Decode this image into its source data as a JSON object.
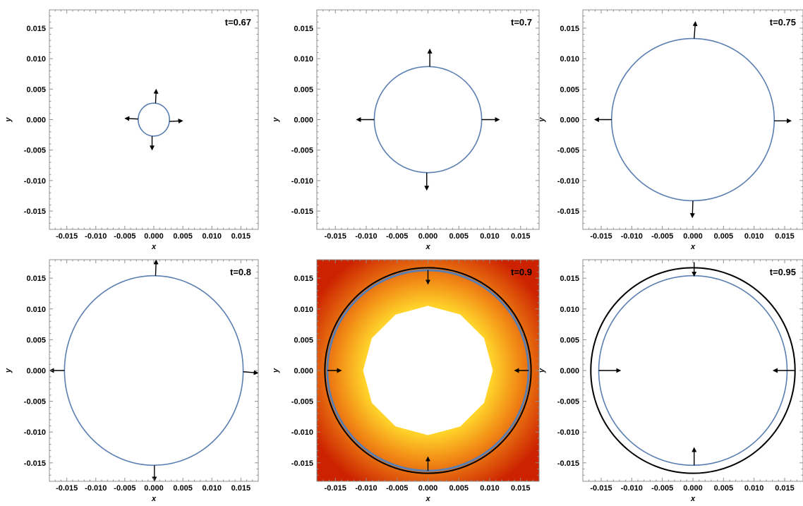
{
  "chart_data": [
    {
      "type": "scatter",
      "time_label": "t=0.67",
      "xlabel": "x",
      "ylabel": "y",
      "xlim": [
        -0.018,
        0.018
      ],
      "ylim": [
        -0.018,
        0.018
      ],
      "xticks": [
        "-0.015",
        "-0.010",
        "-0.005",
        "0.000",
        "0.005",
        "0.010",
        "0.015"
      ],
      "yticks": [
        "-0.015",
        "-0.010",
        "-0.005",
        "0.000",
        "0.005",
        "0.010",
        "0.015"
      ],
      "front_radius": 0.0027,
      "arrow_direction": "outward",
      "arrows": [
        {
          "x": 0.0003,
          "y": 0.0027,
          "dx": 0.0001,
          "dy": 0.0022
        },
        {
          "x": -0.0027,
          "y": 0.0001,
          "dx": -0.0022,
          "dy": 0.0001
        },
        {
          "x": 0.0027,
          "y": -0.0003,
          "dx": 0.0022,
          "dy": 0.0001
        },
        {
          "x": -0.0003,
          "y": -0.0027,
          "dx": 0.0,
          "dy": -0.0022
        }
      ],
      "background": "none"
    },
    {
      "type": "scatter",
      "time_label": "t=0.7",
      "xlabel": "x",
      "ylabel": "y",
      "xlim": [
        -0.018,
        0.018
      ],
      "ylim": [
        -0.018,
        0.018
      ],
      "xticks": [
        "-0.015",
        "-0.010",
        "-0.005",
        "0.000",
        "0.005",
        "0.010",
        "0.015"
      ],
      "yticks": [
        "-0.015",
        "-0.010",
        "-0.005",
        "0.000",
        "0.005",
        "0.010",
        "0.015"
      ],
      "front_radius": 0.0087,
      "arrow_direction": "outward",
      "arrows": [
        {
          "x": 0.0003,
          "y": 0.0087,
          "dx": 0.0,
          "dy": 0.0028
        },
        {
          "x": -0.0087,
          "y": 0.0,
          "dx": -0.0028,
          "dy": 0.0
        },
        {
          "x": 0.0087,
          "y": 0.0,
          "dx": 0.0028,
          "dy": 0.0
        },
        {
          "x": -0.0002,
          "y": -0.0087,
          "dx": 0.0,
          "dy": -0.0028
        }
      ],
      "background": "none"
    },
    {
      "type": "scatter",
      "time_label": "t=0.75",
      "xlabel": "x",
      "ylabel": "y",
      "xlim": [
        -0.018,
        0.018
      ],
      "ylim": [
        -0.018,
        0.018
      ],
      "xticks": [
        "-0.015",
        "-0.010",
        "-0.005",
        "0.000",
        "0.005",
        "0.010",
        "0.015"
      ],
      "yticks": [
        "-0.015",
        "-0.010",
        "-0.005",
        "0.000",
        "0.005",
        "0.010",
        "0.015"
      ],
      "front_radius": 0.0133,
      "arrow_direction": "outward",
      "arrows": [
        {
          "x": 0.0002,
          "y": 0.0133,
          "dx": 0.0002,
          "dy": 0.0027
        },
        {
          "x": -0.0133,
          "y": 0.0,
          "dx": -0.0027,
          "dy": 0.0
        },
        {
          "x": 0.0133,
          "y": -0.0002,
          "dx": 0.0027,
          "dy": 0.0
        },
        {
          "x": 0.0,
          "y": -0.0133,
          "dx": -0.0001,
          "dy": -0.0027
        }
      ],
      "background": "none"
    },
    {
      "type": "scatter",
      "time_label": "t=0.8",
      "xlabel": "x",
      "ylabel": "y",
      "xlim": [
        -0.018,
        0.018
      ],
      "ylim": [
        -0.018,
        0.018
      ],
      "xticks": [
        "-0.015",
        "-0.010",
        "-0.005",
        "0.000",
        "0.005",
        "0.010",
        "0.015"
      ],
      "yticks": [
        "-0.015",
        "-0.010",
        "-0.005",
        "0.000",
        "0.005",
        "0.010",
        "0.015"
      ],
      "front_radius": 0.0154,
      "arrow_direction": "outward",
      "arrows": [
        {
          "x": 0.0003,
          "y": 0.0154,
          "dx": 0.0001,
          "dy": 0.0025
        },
        {
          "x": -0.0154,
          "y": 0.0,
          "dx": -0.0025,
          "dy": 0.0
        },
        {
          "x": 0.0154,
          "y": -0.0002,
          "dx": 0.0025,
          "dy": -0.0002
        },
        {
          "x": 0.0001,
          "y": -0.0154,
          "dx": 0.0,
          "dy": -0.0025
        }
      ],
      "background": "none"
    },
    {
      "type": "heatmap",
      "time_label": "t=0.9",
      "xlabel": "x",
      "ylabel": "y",
      "xlim": [
        -0.018,
        0.018
      ],
      "ylim": [
        -0.018,
        0.018
      ],
      "xticks": [
        "-0.015",
        "-0.010",
        "-0.005",
        "0.000",
        "0.005",
        "0.010",
        "0.015"
      ],
      "yticks": [
        "-0.015",
        "-0.010",
        "-0.005",
        "0.000",
        "0.005",
        "0.010",
        "0.015"
      ],
      "front_radius": 0.0163,
      "outer_circle_radius": 0.0167,
      "inner_white_radius": 0.0105,
      "arrow_direction": "inward",
      "arrows": [
        {
          "x": 0.0,
          "y": 0.0163,
          "dx": 0.0,
          "dy": -0.0022
        },
        {
          "x": -0.0163,
          "y": 0.0,
          "dx": 0.0022,
          "dy": 0.0
        },
        {
          "x": 0.0163,
          "y": 0.0,
          "dx": -0.0022,
          "dy": 0.0
        },
        {
          "x": 0.0,
          "y": -0.0163,
          "dx": 0.0,
          "dy": 0.0022
        }
      ],
      "background": "heat",
      "colors": {
        "edge": "#cc2200",
        "mid": "#f28c16",
        "inner": "#ffd42a"
      }
    },
    {
      "type": "scatter",
      "time_label": "t=0.95",
      "xlabel": "x",
      "ylabel": "y",
      "xlim": [
        -0.018,
        0.018
      ],
      "ylim": [
        -0.018,
        0.018
      ],
      "xticks": [
        "-0.015",
        "-0.010",
        "-0.005",
        "0.000",
        "0.005",
        "0.010",
        "0.015"
      ],
      "yticks": [
        "-0.015",
        "-0.010",
        "-0.005",
        "0.000",
        "0.005",
        "0.010",
        "0.015"
      ],
      "front_radius": 0.0154,
      "outer_circle_radius": 0.0167,
      "arrow_direction": "inward",
      "arrows": [
        {
          "x": 0.0002,
          "y": 0.0176,
          "dx": 0.0,
          "dy": -0.0022
        },
        {
          "x": -0.0154,
          "y": 0.0,
          "dx": 0.0035,
          "dy": 0.0
        },
        {
          "x": 0.0167,
          "y": 0.0,
          "dx": -0.0035,
          "dy": 0.0
        },
        {
          "x": 0.0002,
          "y": -0.0154,
          "dx": 0.0,
          "dy": 0.0028
        }
      ],
      "background": "none"
    }
  ],
  "colors": {
    "front": "#5b7fb1",
    "outer": "#000000",
    "frame": "#8f8f8f",
    "text": "#000000"
  }
}
